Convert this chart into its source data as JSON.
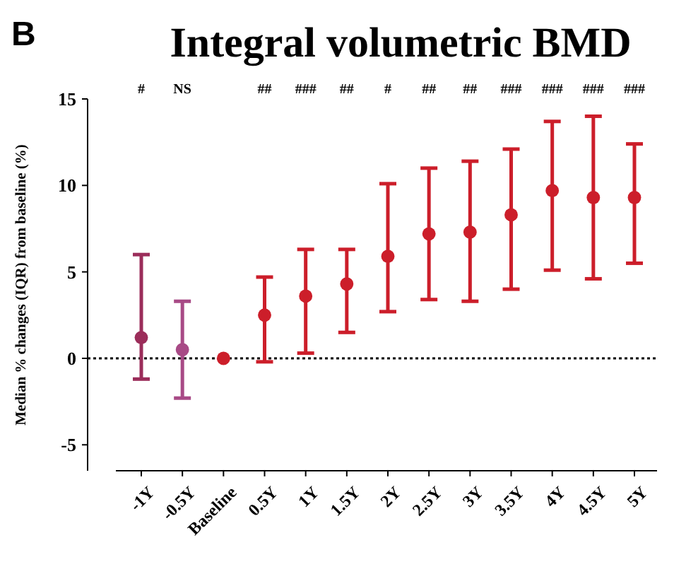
{
  "chart_data": {
    "type": "scatter",
    "title": "Integral volumetric BMD",
    "ylabel": "Median % changes (IQR) from baseline (%)",
    "categories": [
      "-1Y",
      "-0.5Y",
      "Baseline",
      "0.5Y",
      "1Y",
      "1.5Y",
      "2Y",
      "2.5Y",
      "3Y",
      "3.5Y",
      "4Y",
      "4.5Y",
      "5Y"
    ],
    "values": [
      1.2,
      0.5,
      0,
      2.5,
      3.6,
      4.3,
      5.9,
      7.2,
      7.3,
      8.3,
      9.7,
      9.3,
      9.3
    ],
    "errors": [
      [
        -1.2,
        6.0
      ],
      [
        -2.3,
        3.3
      ],
      null,
      [
        -0.2,
        4.7
      ],
      [
        0.3,
        6.3
      ],
      [
        1.5,
        6.3
      ],
      [
        2.7,
        10.1
      ],
      [
        3.4,
        11.0
      ],
      [
        3.3,
        11.4
      ],
      [
        4.0,
        12.1
      ],
      [
        5.1,
        13.7
      ],
      [
        4.6,
        14.0
      ],
      [
        5.5,
        12.4
      ]
    ],
    "colors": [
      "#9b2d5a",
      "#a84a86",
      "#cc1e2a",
      "#cc1e2a",
      "#cc1e2a",
      "#cc1e2a",
      "#cc1e2a",
      "#cc1e2a",
      "#cc1e2a",
      "#cc1e2a",
      "#cc1e2a",
      "#cc1e2a",
      "#cc1e2a"
    ],
    "marker": "circle",
    "ylim": [
      -6.5,
      15
    ],
    "yticks": [
      -5,
      0,
      5,
      10,
      15
    ],
    "grid": false,
    "ref_lines": [
      {
        "axis": "y",
        "value": 0,
        "line_style": "dotted",
        "color": "#000000"
      }
    ],
    "annotations": [
      "B",
      "#",
      "NS",
      "##",
      "###",
      "##",
      "#",
      "##",
      "##",
      "###",
      "###",
      "###",
      "###"
    ]
  }
}
